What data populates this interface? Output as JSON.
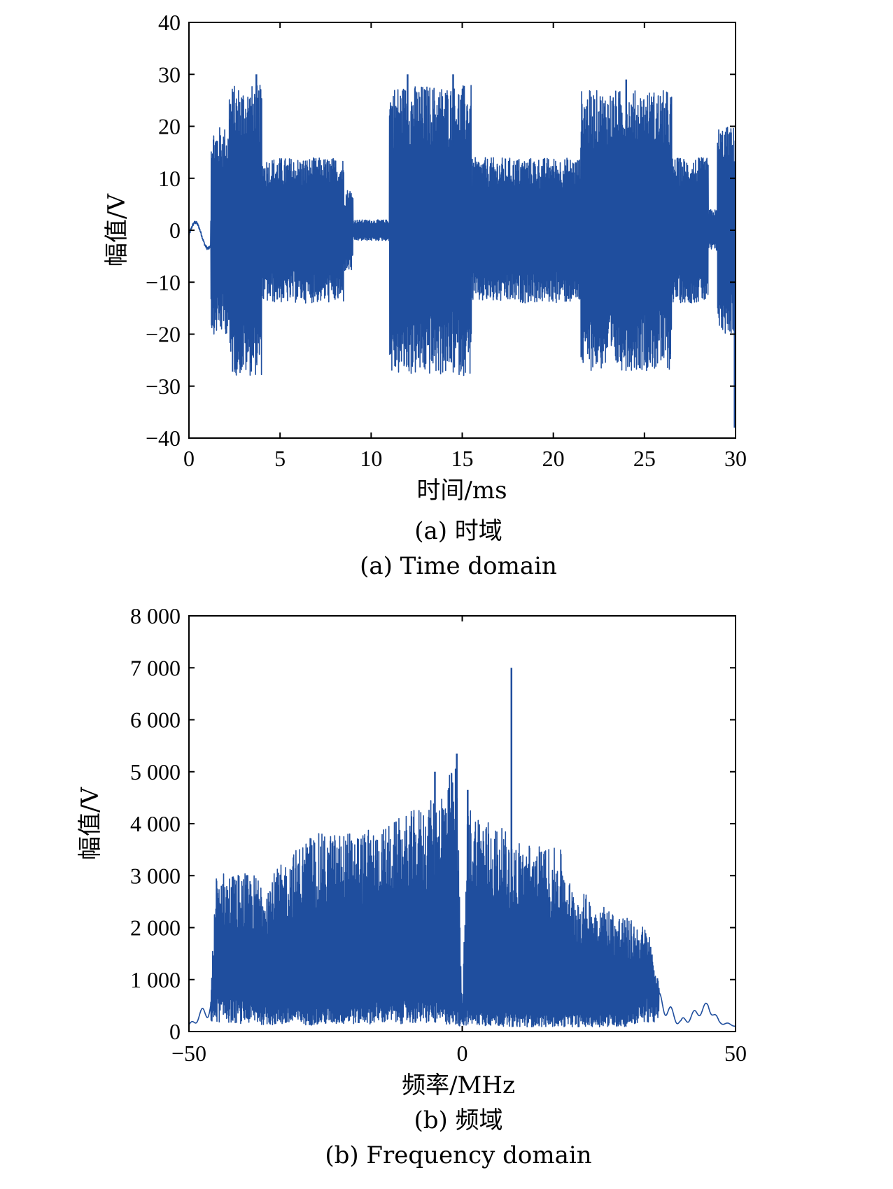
{
  "chart_data": [
    {
      "type": "line",
      "title": "",
      "xlabel": "时间/ms",
      "ylabel": "幅值/V",
      "caption_cn": "(a) 时域",
      "caption_en": "(a) Time domain",
      "xlim": [
        0,
        30
      ],
      "ylim": [
        -40,
        40
      ],
      "xticks": [
        0,
        5,
        10,
        15,
        20,
        25,
        30
      ],
      "xtick_labels": [
        "0",
        "5",
        "10",
        "15",
        "20",
        "25",
        "30"
      ],
      "yticks": [
        40,
        30,
        20,
        10,
        0,
        -10,
        -20,
        -30,
        -40
      ],
      "ytick_labels": [
        "40",
        "30",
        "20",
        "10",
        "0",
        "−10",
        "−20",
        "−30",
        "−40"
      ],
      "grid": false,
      "color": "#1f4e9e",
      "segments": [
        {
          "x": [
            0,
            1.2
          ],
          "level": 3
        },
        {
          "x": [
            1.2,
            2.2
          ],
          "level": 20
        },
        {
          "x": [
            2.2,
            4.0
          ],
          "level": 28
        },
        {
          "x": [
            4.0,
            8.5
          ],
          "level": 14
        },
        {
          "x": [
            8.5,
            9.0
          ],
          "level": 8
        },
        {
          "x": [
            9.0,
            11.0
          ],
          "level": 2
        },
        {
          "x": [
            11.0,
            15.5
          ],
          "level": 28
        },
        {
          "x": [
            15.5,
            21.5
          ],
          "level": 14
        },
        {
          "x": [
            21.5,
            26.5
          ],
          "level": 27
        },
        {
          "x": [
            26.5,
            28.5
          ],
          "level": 14
        },
        {
          "x": [
            28.5,
            29.0
          ],
          "level": 4
        },
        {
          "x": [
            29.0,
            30.0
          ],
          "level": 20
        }
      ],
      "extremes": [
        {
          "x": 3.7,
          "y": 30
        },
        {
          "x": 12.0,
          "y": 30
        },
        {
          "x": 14.5,
          "y": 30
        },
        {
          "x": 24.0,
          "y": 29
        },
        {
          "x": 29.95,
          "y": -38
        }
      ]
    },
    {
      "type": "line",
      "title": "",
      "xlabel": "频率/MHz",
      "ylabel": "幅值/V",
      "caption_cn": "(b) 频域",
      "caption_en": "(b) Frequency domain",
      "xlim": [
        -50,
        50
      ],
      "ylim": [
        0,
        8000
      ],
      "xticks": [
        -50,
        0,
        50
      ],
      "xtick_labels": [
        "−50",
        "0",
        "50"
      ],
      "yticks": [
        8000,
        7000,
        6000,
        5000,
        4000,
        3000,
        2000,
        1000,
        0
      ],
      "ytick_labels": [
        "8 000",
        "7 000",
        "6 000",
        "5 000",
        "4 000",
        "3 000",
        "2 000",
        "1 000",
        "0"
      ],
      "grid": false,
      "color": "#1f4e9e",
      "envelope": [
        {
          "x": -50,
          "low": 100,
          "high": 150
        },
        {
          "x": -46,
          "low": 300,
          "high": 800
        },
        {
          "x": -45,
          "low": 600,
          "high": 3100
        },
        {
          "x": -35,
          "low": 400,
          "high": 3000
        },
        {
          "x": -28,
          "low": 400,
          "high": 3800
        },
        {
          "x": -15,
          "low": 500,
          "high": 3900
        },
        {
          "x": -5,
          "low": 500,
          "high": 4500
        },
        {
          "x": -1,
          "low": 400,
          "high": 5200
        },
        {
          "x": 0,
          "low": 300,
          "high": 400
        },
        {
          "x": 1,
          "low": 400,
          "high": 4400
        },
        {
          "x": 10,
          "low": 300,
          "high": 3700
        },
        {
          "x": 18,
          "low": 300,
          "high": 3500
        },
        {
          "x": 20,
          "low": 300,
          "high": 2800
        },
        {
          "x": 30,
          "low": 300,
          "high": 2200
        },
        {
          "x": 34,
          "low": 600,
          "high": 2000
        },
        {
          "x": 36,
          "low": 400,
          "high": 900
        },
        {
          "x": 40,
          "low": 100,
          "high": 300
        },
        {
          "x": 45,
          "low": 400,
          "high": 650
        },
        {
          "x": 47,
          "low": 150,
          "high": 250
        },
        {
          "x": 50,
          "low": 100,
          "high": 120
        }
      ],
      "spikes": [
        {
          "x": 9,
          "y": 7000
        },
        {
          "x": -1,
          "y": 5350
        },
        {
          "x": -5,
          "y": 5000
        },
        {
          "x": 1,
          "y": 4650
        }
      ]
    }
  ]
}
